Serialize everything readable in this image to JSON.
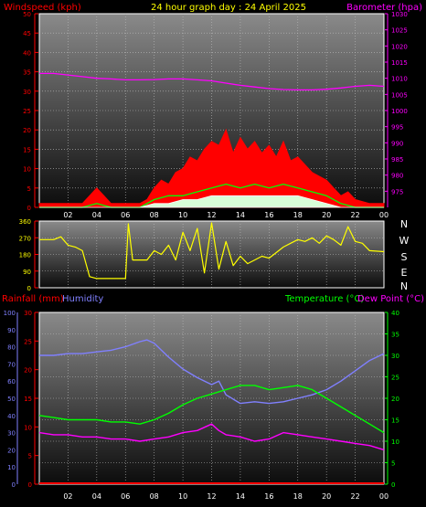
{
  "header": {
    "wind_label": "Windspeed (kph)",
    "title": "24 hour graph day : 24 April 2025",
    "baro_label": "Barometer (hpa)"
  },
  "compass": [
    "N",
    "W",
    "S",
    "E",
    "N"
  ],
  "lower_header": {
    "rain_label": "Rainfall (mm)",
    "humidity_label": "Humidity",
    "temp_label": "Temperature (°C)",
    "dew_label": "Dew Point (°C)"
  },
  "colors": {
    "wind": "#ff0000",
    "gust": "#ff0000",
    "wind_avg": "#00ff00",
    "wind_min": "#ffffff",
    "barometer": "#ff00ff",
    "direction": "#ffff00",
    "rain": "#ff0000",
    "humidity": "#8080ff",
    "temperature": "#00ff00",
    "dewpoint": "#ff00ff",
    "title": "#ffff00"
  },
  "chart_data": [
    {
      "type": "line",
      "title": "24 hour graph day : 24 April 2025",
      "xlabel": "",
      "ylabel": "Windspeed (kph)",
      "y2label": "Barometer (hpa)",
      "x_ticks": [
        "02",
        "04",
        "06",
        "08",
        "10",
        "12",
        "14",
        "16",
        "18",
        "20",
        "22",
        "00"
      ],
      "xlim": [
        0,
        24
      ],
      "ylim": [
        0,
        50
      ],
      "y_ticks": [
        0,
        5,
        10,
        15,
        20,
        25,
        30,
        35,
        40,
        45,
        50
      ],
      "y2lim": [
        970,
        1030
      ],
      "y2_ticks": [
        975,
        980,
        985,
        990,
        995,
        1000,
        1005,
        1010,
        1015,
        1020,
        1025,
        1030
      ],
      "grid": true,
      "series": [
        {
          "name": "Barometer",
          "axis": "right",
          "x": [
            0,
            1,
            2,
            3,
            4,
            5,
            6,
            7,
            8,
            9,
            10,
            11,
            12,
            13,
            14,
            15,
            16,
            17,
            18,
            19,
            20,
            21,
            22,
            23,
            24
          ],
          "values": [
            1011.5,
            1011.5,
            1011,
            1010.5,
            1010,
            1009.8,
            1009.5,
            1009.5,
            1009.6,
            1009.8,
            1009.8,
            1009.5,
            1009.2,
            1008.5,
            1007.8,
            1007.3,
            1006.8,
            1006.5,
            1006.4,
            1006.4,
            1006.6,
            1007.0,
            1007.5,
            1007.8,
            1007.5
          ]
        },
        {
          "name": "Gust",
          "axis": "left",
          "x": [
            0,
            1,
            2,
            3,
            3.5,
            4,
            4.5,
            5,
            6,
            7,
            7.5,
            8,
            8.5,
            9,
            9.5,
            10,
            10.5,
            11,
            11.5,
            12,
            12.5,
            13,
            13.5,
            14,
            14.5,
            15,
            15.5,
            16,
            16.5,
            17,
            17.5,
            18,
            18.5,
            19,
            19.5,
            20,
            20.5,
            21,
            21.5,
            22,
            23,
            24
          ],
          "values": [
            1,
            1,
            1,
            1,
            3,
            5,
            3,
            1,
            1,
            1,
            2,
            5,
            7,
            6,
            9,
            10,
            13,
            12,
            15,
            17,
            16,
            20,
            14,
            18,
            15,
            17,
            14,
            16,
            13,
            17,
            12,
            13,
            11,
            9,
            8,
            7,
            5,
            3,
            4,
            2,
            1,
            1
          ]
        },
        {
          "name": "Wind Average",
          "axis": "left",
          "x": [
            0,
            3,
            4,
            5,
            7,
            8,
            9,
            10,
            11,
            12,
            13,
            14,
            15,
            16,
            17,
            18,
            19,
            20,
            21,
            22,
            24
          ],
          "values": [
            0,
            0,
            1,
            0,
            0,
            2,
            3,
            3,
            4,
            5,
            6,
            5,
            6,
            5,
            6,
            5,
            4,
            3,
            1,
            0,
            0
          ]
        },
        {
          "name": "Wind Min",
          "axis": "left",
          "x": [
            0,
            7,
            8,
            9,
            10,
            11,
            12,
            13,
            14,
            15,
            16,
            17,
            18,
            19,
            20,
            21,
            24
          ],
          "values": [
            0,
            0,
            1,
            1,
            2,
            2,
            3,
            3,
            3,
            3,
            3,
            3,
            3,
            2,
            1,
            0,
            0
          ]
        }
      ]
    },
    {
      "type": "line",
      "xlabel": "",
      "ylabel": "",
      "x_ticks": [
        "02",
        "04",
        "06",
        "08",
        "10",
        "12",
        "14",
        "16",
        "18",
        "20",
        "22",
        "00"
      ],
      "xlim": [
        0,
        24
      ],
      "ylim": [
        0,
        360
      ],
      "y_ticks": [
        0,
        90,
        180,
        270,
        360
      ],
      "grid": true,
      "series": [
        {
          "name": "Wind Direction",
          "x": [
            0,
            1,
            1.5,
            2,
            2.5,
            3,
            3.5,
            4,
            5,
            6,
            6.2,
            6.5,
            7.5,
            8,
            8.5,
            9,
            9.5,
            10,
            10.5,
            11,
            11.5,
            12,
            12.5,
            13,
            13.5,
            14,
            14.5,
            15,
            15.5,
            16,
            16.5,
            17,
            17.5,
            18,
            18.5,
            19,
            19.5,
            20,
            20.5,
            21,
            21.5,
            22,
            22.5,
            23,
            24
          ],
          "values": [
            260,
            260,
            275,
            230,
            220,
            200,
            60,
            50,
            50,
            50,
            345,
            150,
            150,
            200,
            180,
            230,
            150,
            300,
            200,
            320,
            80,
            350,
            100,
            250,
            120,
            170,
            130,
            150,
            170,
            160,
            190,
            220,
            240,
            260,
            250,
            270,
            240,
            280,
            260,
            230,
            330,
            250,
            240,
            200,
            195
          ]
        }
      ]
    },
    {
      "type": "line",
      "xlabel": "",
      "ylabel": "Rainfall (mm)",
      "y2label": "Temperature (°C) / Dew Point (°C)",
      "x_ticks": [
        "02",
        "04",
        "06",
        "08",
        "10",
        "12",
        "14",
        "16",
        "18",
        "20",
        "22",
        "00"
      ],
      "xlim": [
        0,
        24
      ],
      "rain_ylim": [
        0,
        30
      ],
      "rain_ticks": [
        0,
        5,
        10,
        15,
        20,
        25,
        30
      ],
      "humidity_ylim": [
        0,
        100
      ],
      "humidity_ticks": [
        0,
        10,
        20,
        30,
        40,
        50,
        60,
        70,
        80,
        90,
        100
      ],
      "y2lim": [
        0,
        40
      ],
      "y2_ticks": [
        0,
        5,
        10,
        15,
        20,
        25,
        30,
        35,
        40
      ],
      "grid": true,
      "series": [
        {
          "name": "Humidity",
          "axis": "humidity",
          "x": [
            0,
            1,
            2,
            3,
            4,
            5,
            6,
            7,
            7.5,
            8,
            9,
            10,
            11,
            12,
            12.5,
            13,
            14,
            15,
            16,
            17,
            18,
            19,
            20,
            21,
            22,
            23,
            24
          ],
          "values": [
            75,
            75,
            76,
            76,
            77,
            78,
            80,
            83,
            84,
            82,
            74,
            67,
            62,
            58,
            60,
            52,
            47,
            48,
            47,
            48,
            50,
            52,
            55,
            60,
            66,
            72,
            76
          ]
        },
        {
          "name": "Temperature",
          "axis": "right",
          "x": [
            0,
            1,
            2,
            3,
            4,
            5,
            6,
            7,
            8,
            9,
            10,
            11,
            12,
            13,
            14,
            15,
            16,
            17,
            18,
            19,
            20,
            21,
            22,
            23,
            24
          ],
          "values": [
            16,
            15.5,
            15,
            15,
            15,
            14.5,
            14.5,
            14,
            15,
            16.5,
            18.5,
            20,
            21,
            22,
            23,
            23,
            22,
            22.5,
            23,
            22,
            20,
            18,
            16,
            14,
            12
          ]
        },
        {
          "name": "Dew Point",
          "axis": "right",
          "x": [
            0,
            1,
            2,
            3,
            4,
            5,
            6,
            7,
            8,
            9,
            10,
            11,
            12,
            12.5,
            13,
            14,
            15,
            16,
            17,
            18,
            19,
            20,
            21,
            22,
            23,
            24
          ],
          "values": [
            12,
            11.5,
            11.5,
            11,
            11,
            10.5,
            10.5,
            10,
            10.5,
            11,
            12,
            12.5,
            14,
            12.5,
            11.5,
            11,
            10,
            10.5,
            12,
            11.5,
            11,
            10.5,
            10,
            9.5,
            9,
            8
          ]
        },
        {
          "name": "Rainfall",
          "axis": "rain",
          "x": [
            0,
            24
          ],
          "values": [
            0,
            0
          ]
        }
      ]
    }
  ]
}
